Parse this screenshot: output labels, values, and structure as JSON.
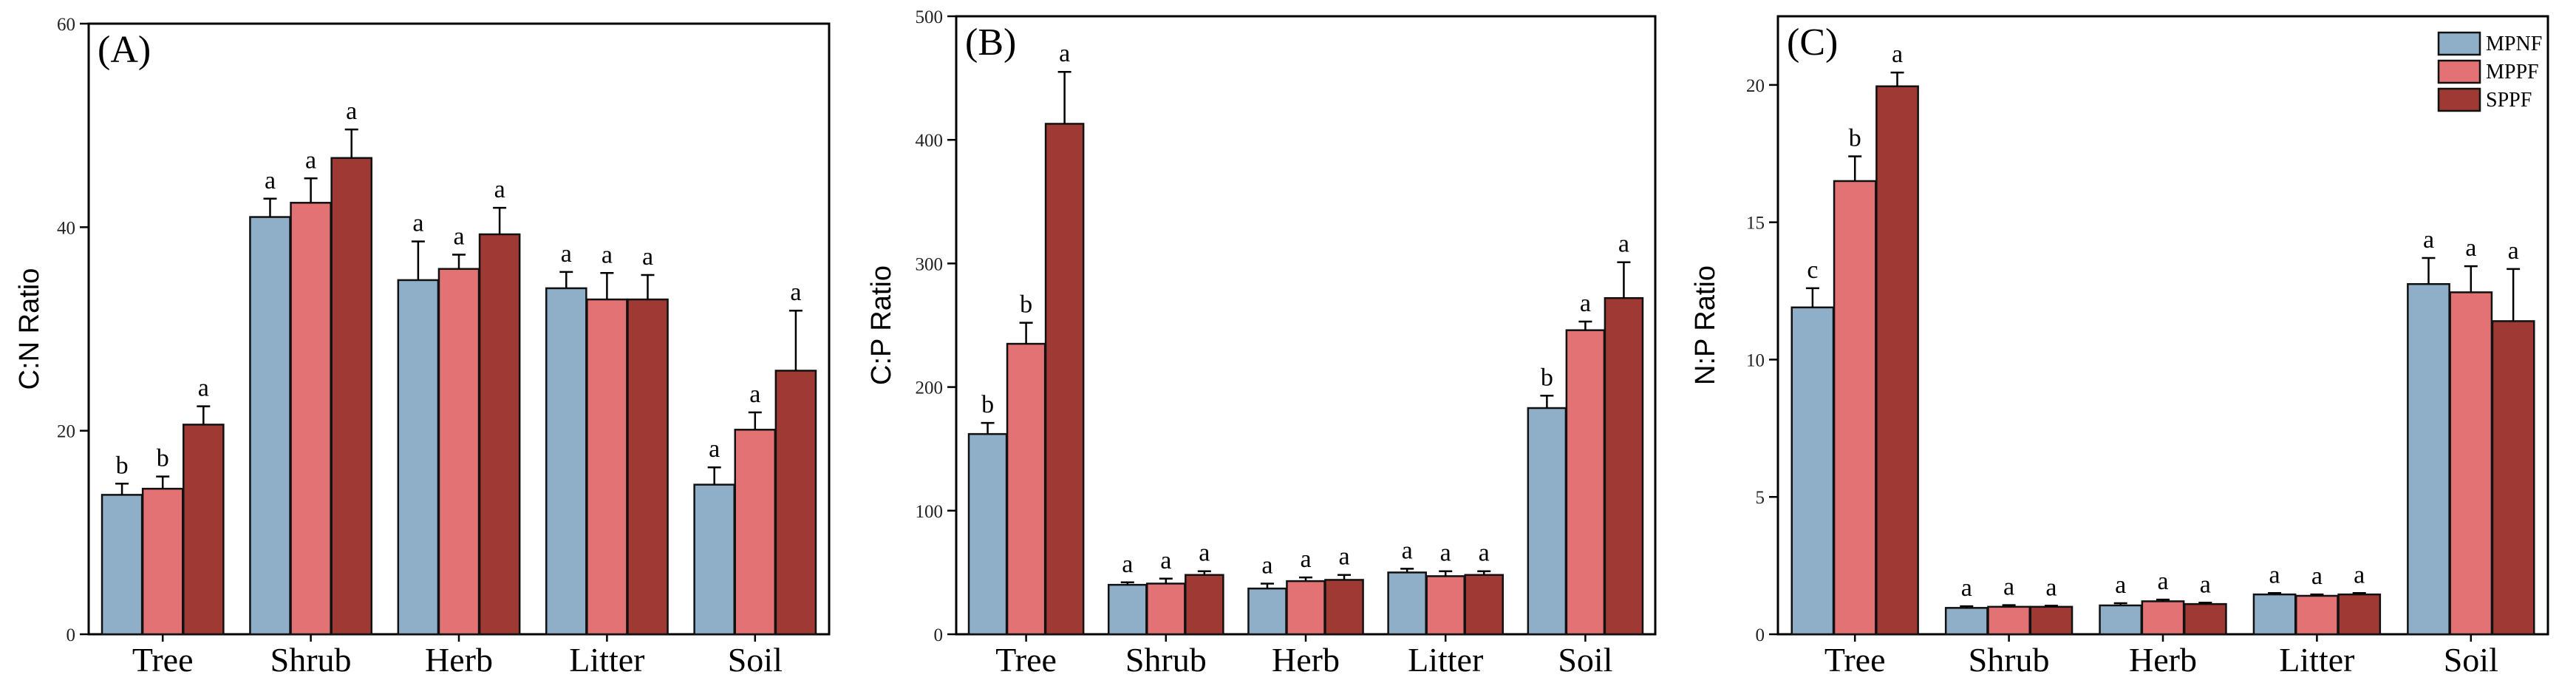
{
  "chart_data": [
    {
      "type": "bar",
      "panel_label": "(A)",
      "ylabel": "C:N Ratio",
      "ylim": [
        0,
        60
      ],
      "yticks": [
        0,
        20,
        40,
        60
      ],
      "categories": [
        "Tree",
        "Shrub",
        "Herb",
        "Litter",
        "Soil"
      ],
      "series": [
        {
          "name": "MPNF",
          "values": [
            13.7,
            41.0,
            34.8,
            34.0,
            14.7
          ],
          "errors": [
            1.1,
            1.8,
            3.8,
            1.6,
            1.7
          ],
          "letters": [
            "b",
            "a",
            "a",
            "a",
            "a"
          ]
        },
        {
          "name": "MPPF",
          "values": [
            14.3,
            42.4,
            35.9,
            32.9,
            20.1
          ],
          "errors": [
            1.2,
            2.4,
            1.4,
            2.6,
            1.7
          ],
          "letters": [
            "b",
            "a",
            "a",
            "a",
            "a"
          ]
        },
        {
          "name": "SPPF",
          "values": [
            20.6,
            46.8,
            39.3,
            32.9,
            25.9
          ],
          "errors": [
            1.8,
            2.8,
            2.6,
            2.4,
            5.9
          ],
          "letters": [
            "a",
            "a",
            "a",
            "a",
            "a"
          ]
        }
      ]
    },
    {
      "type": "bar",
      "panel_label": "(B)",
      "ylabel": "C:P Ratio",
      "ylim": [
        0,
        500
      ],
      "yticks": [
        0,
        100,
        200,
        300,
        400,
        500
      ],
      "categories": [
        "Tree",
        "Shrub",
        "Herb",
        "Litter",
        "Soil"
      ],
      "series": [
        {
          "name": "MPNF",
          "values": [
            162,
            40,
            37,
            50,
            183
          ],
          "errors": [
            9,
            2,
            4,
            3,
            10
          ],
          "letters": [
            "b",
            "a",
            "a",
            "a",
            "b"
          ]
        },
        {
          "name": "MPPF",
          "values": [
            235,
            41,
            43,
            47,
            246
          ],
          "errors": [
            17,
            4,
            3,
            4,
            7
          ],
          "letters": [
            "b",
            "a",
            "a",
            "a",
            "a"
          ]
        },
        {
          "name": "SPPF",
          "values": [
            413,
            48,
            44,
            48,
            272
          ],
          "errors": [
            42,
            3,
            4,
            3,
            29
          ],
          "letters": [
            "a",
            "a",
            "a",
            "a",
            "a"
          ]
        }
      ]
    },
    {
      "type": "bar",
      "panel_label": "(C)",
      "ylabel": "N:P Ratio",
      "ylim": [
        0,
        22.5
      ],
      "yticks": [
        0,
        5,
        10,
        15,
        20
      ],
      "categories": [
        "Tree",
        "Shrub",
        "Herb",
        "Litter",
        "Soil"
      ],
      "legend": [
        "MPNF",
        "MPPF",
        "SPPF"
      ],
      "legend_position": "top-right",
      "series": [
        {
          "name": "MPNF",
          "values": [
            11.9,
            0.96,
            1.05,
            1.45,
            12.75
          ],
          "errors": [
            0.7,
            0.06,
            0.08,
            0.05,
            0.95
          ],
          "letters": [
            "c",
            "a",
            "a",
            "a",
            "a"
          ]
        },
        {
          "name": "MPPF",
          "values": [
            16.5,
            1.0,
            1.2,
            1.4,
            12.45
          ],
          "errors": [
            0.9,
            0.06,
            0.06,
            0.05,
            0.95
          ],
          "letters": [
            "b",
            "a",
            "a",
            "a",
            "a"
          ]
        },
        {
          "name": "SPPF",
          "values": [
            19.95,
            1.0,
            1.1,
            1.45,
            11.4
          ],
          "errors": [
            0.5,
            0.04,
            0.05,
            0.05,
            1.9
          ],
          "letters": [
            "a",
            "a",
            "a",
            "a",
            "a"
          ]
        }
      ]
    }
  ],
  "colors": {
    "MPNF": "#8eafc7",
    "MPPF": "#e27273",
    "SPPF": "#9e3933"
  }
}
